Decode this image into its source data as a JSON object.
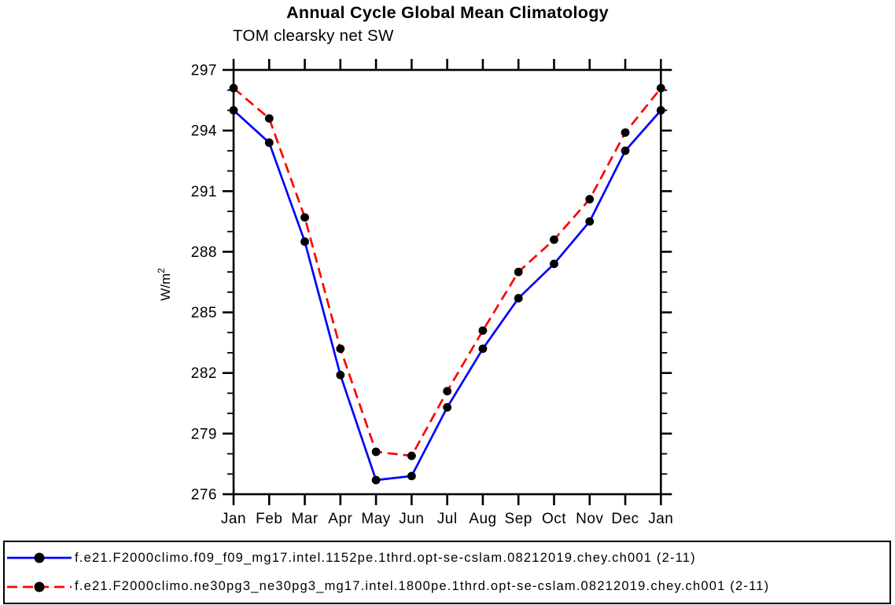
{
  "chart": {
    "title": "Annual Cycle Global Mean Climatology",
    "subtitle": "TOM clearsky net SW"
  },
  "chart_data": {
    "type": "line",
    "title": "Annual Cycle Global Mean Climatology",
    "subtitle": "TOM clearsky net SW",
    "ylabel_base": "W/m",
    "ylabel_exp": "2",
    "categories": [
      "Jan",
      "Feb",
      "Mar",
      "Apr",
      "May",
      "Jun",
      "Jul",
      "Aug",
      "Sep",
      "Oct",
      "Nov",
      "Dec",
      "Jan"
    ],
    "ylim": [
      276,
      297
    ],
    "ytick_major_step": 3,
    "ytick_minor_step": 1,
    "ytick_labels": [
      "276",
      "279",
      "282",
      "285",
      "288",
      "291",
      "294",
      "297"
    ],
    "grid": false,
    "legend_position": "bottom",
    "frame_color": "#000000",
    "marker_color": "#000000",
    "series": [
      {
        "name": "f.e21.F2000climo.f09_f09_mg17.intel.1152pe.1thrd.opt-se-cslam.08212019.chey.ch001 (2-11)",
        "color": "#0000ff",
        "style": "solid",
        "marker": "circle",
        "values": [
          295.0,
          293.4,
          288.5,
          281.9,
          276.7,
          276.9,
          280.3,
          283.2,
          285.7,
          287.4,
          289.5,
          293.0,
          295.0
        ]
      },
      {
        "name": "f.e21.F2000climo.ne30pg3_ne30pg3_mg17.intel.1800pe.1thrd.opt-se-cslam.08212019.chey.ch001 (2-11)",
        "color": "#ff0000",
        "style": "dashed",
        "marker": "circle",
        "values": [
          296.1,
          294.6,
          289.7,
          283.2,
          278.1,
          277.9,
          281.1,
          284.1,
          287.0,
          288.6,
          290.6,
          293.9,
          296.1
        ]
      }
    ]
  }
}
